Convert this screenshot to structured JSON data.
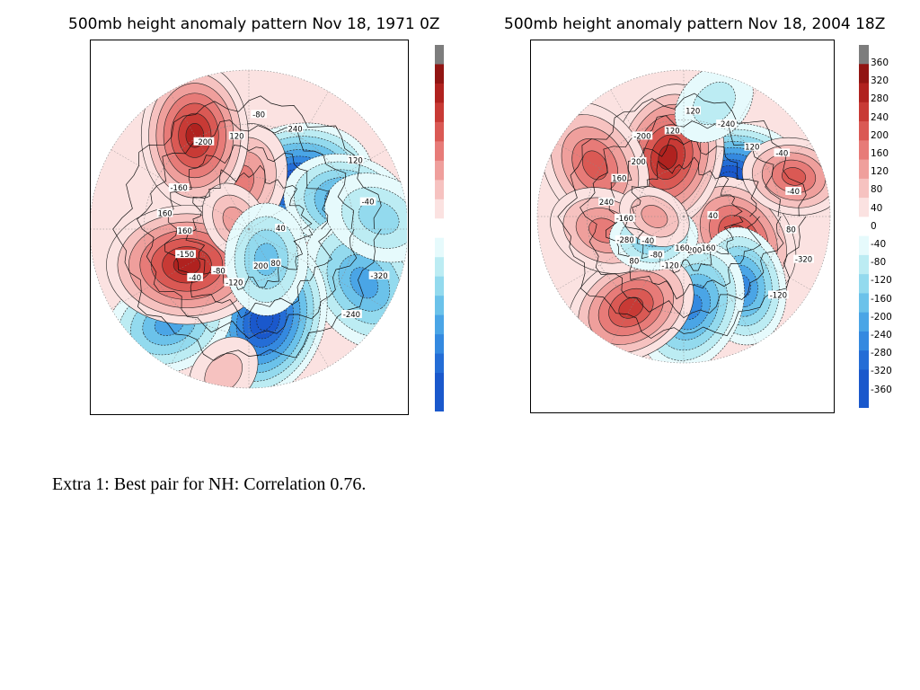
{
  "caption": "Extra 1: Best pair for NH: Correlation 0.76.",
  "palette": {
    "pos": [
      "#fbe2e1",
      "#f6c2c0",
      "#ef9f9c",
      "#e77b78",
      "#da5954",
      "#c83a35",
      "#b0221f",
      "#911513",
      "#7d7d7d"
    ],
    "neg": [
      "#e6fafc",
      "#bcecf3",
      "#93daee",
      "#6bc2ea",
      "#4aa5e6",
      "#3489e0",
      "#246dd6",
      "#1a58cc"
    ]
  },
  "maps": [
    {
      "title": "500mb height anomaly pattern Nov 18, 1971 0Z",
      "colorbar_values": [],
      "centers": [
        {
          "a": -45,
          "r": 0.4,
          "v": -320,
          "s": 0.2
        },
        {
          "a": -15,
          "r": 0.64,
          "v": -200,
          "s": 0.16
        },
        {
          "a": 25,
          "r": 0.8,
          "v": -180,
          "s": 0.18
        },
        {
          "a": 80,
          "r": 0.58,
          "v": -340,
          "s": 0.2
        },
        {
          "a": 130,
          "r": 0.78,
          "v": -160,
          "s": 0.16
        },
        {
          "a": -100,
          "r": 0.3,
          "v": 120,
          "s": 0.15
        },
        {
          "a": -120,
          "r": 0.68,
          "v": 240,
          "s": 0.18
        },
        {
          "a": 150,
          "r": 0.45,
          "v": 240,
          "s": 0.2
        },
        {
          "a": -150,
          "r": 0.1,
          "v": 80,
          "s": 0.1
        },
        {
          "a": 60,
          "r": 0.22,
          "v": -150,
          "s": 0.14
        },
        {
          "a": -5,
          "r": 0.82,
          "v": -80,
          "s": 0.14
        },
        {
          "a": 100,
          "r": 0.92,
          "v": 40,
          "s": 0.1
        }
      ],
      "contour_labels": [
        "40",
        "-40",
        "-80",
        "80",
        "160",
        "120",
        "-120",
        "-200",
        "-320",
        "-150",
        "240",
        "200",
        "-160",
        "-40",
        "-80",
        "120",
        "-240",
        "160"
      ]
    },
    {
      "title": "500mb height anomaly pattern Nov 18, 2004 18Z",
      "colorbar_values": [
        "360",
        "320",
        "280",
        "240",
        "200",
        "160",
        "120",
        "80",
        "40",
        "0",
        "-40",
        "-80",
        "-120",
        "-160",
        "-200",
        "-240",
        "-280",
        "-320",
        "-360"
      ],
      "centers": [
        {
          "a": -40,
          "r": 0.4,
          "v": -320,
          "s": 0.2
        },
        {
          "a": 20,
          "r": 0.4,
          "v": 200,
          "s": 0.18
        },
        {
          "a": 50,
          "r": 0.62,
          "v": -200,
          "s": 0.16
        },
        {
          "a": 85,
          "r": 0.62,
          "v": -200,
          "s": 0.18
        },
        {
          "a": -105,
          "r": 0.42,
          "v": 240,
          "s": 0.2
        },
        {
          "a": -150,
          "r": 0.7,
          "v": 160,
          "s": 0.18
        },
        {
          "a": -75,
          "r": 0.8,
          "v": -40,
          "s": 0.12
        },
        {
          "a": 120,
          "r": 0.72,
          "v": 200,
          "s": 0.18
        },
        {
          "a": 170,
          "r": 0.55,
          "v": 120,
          "s": 0.15
        },
        {
          "a": -20,
          "r": 0.8,
          "v": 160,
          "s": 0.14
        },
        {
          "a": 145,
          "r": 0.25,
          "v": -120,
          "s": 0.12
        },
        {
          "a": -180,
          "r": 0.2,
          "v": 80,
          "s": 0.1
        }
      ],
      "contour_labels": [
        "40",
        "80",
        "120",
        "160",
        "240",
        "-40",
        "-120",
        "-200",
        "-320",
        "-280",
        "-240",
        "200",
        "160",
        "-40",
        "-80",
        "120",
        "-120",
        "-160",
        "120",
        "160",
        "200",
        "80",
        "-40"
      ]
    }
  ]
}
